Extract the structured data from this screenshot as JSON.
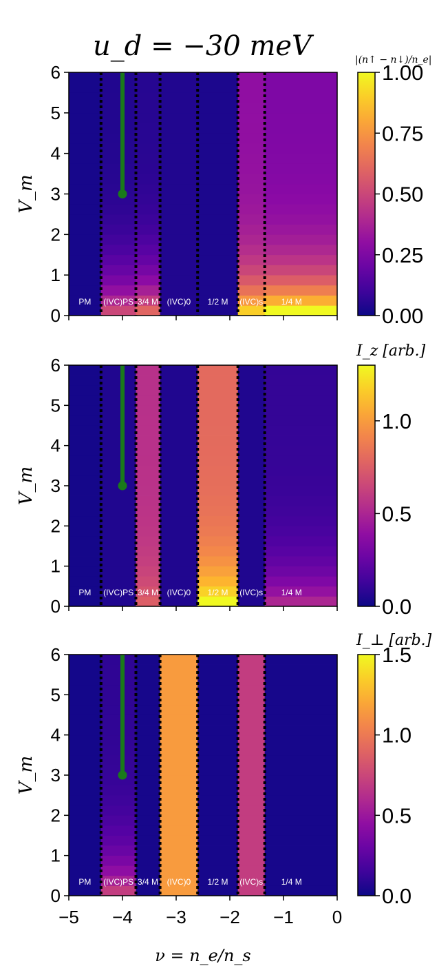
{
  "figure": {
    "title_math": "u_d = −30 meV",
    "xlabel": "ν = n_e/n_s",
    "ylabel": "V_m",
    "x_ticks": [
      "−5",
      "−4",
      "−3",
      "−2",
      "−1",
      "0"
    ],
    "y_ticks": [
      "0",
      "1",
      "2",
      "3",
      "4",
      "5",
      "6"
    ]
  },
  "chart_data": [
    {
      "type": "heatmap",
      "panel": "top",
      "colorbar_label": "|(n↑ − n↓)/n_e|",
      "colorbar_ticks": [
        "0.00",
        "0.25",
        "0.50",
        "0.75",
        "1.00"
      ],
      "colorscale": "plasma",
      "zlim": [
        0,
        1.0
      ],
      "xlim": [
        -5,
        0
      ],
      "ylim": [
        0,
        6
      ],
      "phase_boundaries": [
        -4.4,
        -3.75,
        -3.3,
        -2.6,
        -1.85,
        -1.35
      ],
      "phase_labels": [
        "PM",
        "(IVC)PS",
        "3/4 M",
        "(IVC)0",
        "1/2 M",
        "(IVC)s",
        "1/4 M"
      ],
      "marker": {
        "x": -4,
        "y": 3
      },
      "regions": [
        {
          "x": [
            -5.0,
            -4.4
          ],
          "value": 0.02
        },
        {
          "x": [
            -4.4,
            -3.75
          ],
          "value": 0.04,
          "low_y_value": 0.5
        },
        {
          "x": [
            -3.75,
            -3.3
          ],
          "value": 0.05,
          "low_y_value": 0.6
        },
        {
          "x": [
            -3.3,
            -2.6
          ],
          "value": 0.04
        },
        {
          "x": [
            -2.6,
            -1.85
          ],
          "value": 0.03
        },
        {
          "x": [
            -1.85,
            -1.35
          ],
          "value": 0.3,
          "low_y_value": 0.9
        },
        {
          "x": [
            -1.35,
            0.0
          ],
          "value": 0.25,
          "low_y_value": 1.0
        }
      ]
    },
    {
      "type": "heatmap",
      "panel": "middle",
      "colorbar_label": "I_z [arb.]",
      "colorbar_ticks": [
        "0.0",
        "0.5",
        "1.0"
      ],
      "colorscale": "plasma",
      "zlim": [
        0,
        1.3
      ],
      "xlim": [
        -5,
        0
      ],
      "ylim": [
        0,
        6
      ],
      "phase_boundaries": [
        -4.4,
        -3.75,
        -3.3,
        -2.6,
        -1.85,
        -1.35
      ],
      "phase_labels": [
        "PM",
        "(IVC)PS",
        "3/4 M",
        "(IVC)0",
        "1/2 M",
        "(IVC)s",
        "1/4 M"
      ],
      "marker": {
        "x": -4,
        "y": 3
      },
      "regions": [
        {
          "x": [
            -5.0,
            -4.4
          ],
          "value": 0.02
        },
        {
          "x": [
            -4.4,
            -3.75
          ],
          "value": 0.05
        },
        {
          "x": [
            -3.75,
            -3.3
          ],
          "value": 0.55,
          "low_y_value": 0.75
        },
        {
          "x": [
            -3.3,
            -2.6
          ],
          "value": 0.05
        },
        {
          "x": [
            -2.6,
            -1.85
          ],
          "value": 0.8,
          "low_y_value": 1.3
        },
        {
          "x": [
            -1.85,
            -1.35
          ],
          "value": 0.05
        },
        {
          "x": [
            -1.35,
            0.0
          ],
          "value": 0.1,
          "low_y_value": 0.5
        }
      ]
    },
    {
      "type": "heatmap",
      "panel": "bottom",
      "colorbar_label": "I_⊥ [arb.]",
      "colorbar_ticks": [
        "0.0",
        "0.5",
        "1.0",
        "1.5"
      ],
      "colorscale": "plasma",
      "zlim": [
        0,
        1.5
      ],
      "xlim": [
        -5,
        0
      ],
      "ylim": [
        0,
        6
      ],
      "phase_boundaries": [
        -4.4,
        -3.75,
        -3.3,
        -2.6,
        -1.85,
        -1.35
      ],
      "phase_labels": [
        "PM",
        "(IVC)PS",
        "3/4 M",
        "(IVC)0",
        "1/2 M",
        "(IVC)s",
        "1/4 M"
      ],
      "marker": {
        "x": -4,
        "y": 3
      },
      "regions": [
        {
          "x": [
            -5.0,
            -4.4
          ],
          "value": 0.02
        },
        {
          "x": [
            -4.4,
            -3.75
          ],
          "value": 0.1,
          "low_y_value": 0.7
        },
        {
          "x": [
            -3.75,
            -3.3
          ],
          "value": 0.03
        },
        {
          "x": [
            -3.3,
            -2.6
          ],
          "value": 1.15
        },
        {
          "x": [
            -2.6,
            -1.85
          ],
          "value": 0.03
        },
        {
          "x": [
            -1.85,
            -1.35
          ],
          "value": 0.7
        },
        {
          "x": [
            -1.35,
            0.0
          ],
          "value": 0.03
        }
      ]
    }
  ]
}
